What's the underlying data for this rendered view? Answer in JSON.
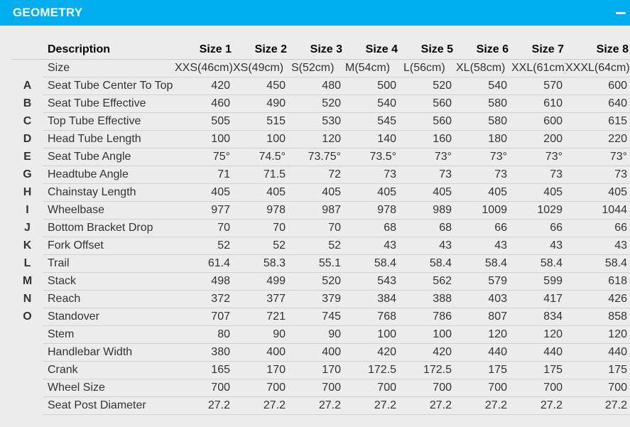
{
  "header": {
    "title": "GEOMETRY"
  },
  "table": {
    "description_header": "Description",
    "size_headers": [
      "Size 1",
      "Size 2",
      "Size 3",
      "Size 4",
      "Size 5",
      "Size 6",
      "Size 7",
      "Size 8"
    ],
    "size_label": "Size",
    "sizes": [
      "XXS(46cm)",
      "XS(49cm)",
      "S(52cm)",
      "M(54cm)",
      "L(56cm)",
      "XL(58cm)",
      "XXL(61cm)",
      "XXXL(64cm)"
    ],
    "rows": [
      {
        "letter": "A",
        "label": "Seat Tube Center To Top",
        "values": [
          "420",
          "450",
          "480",
          "500",
          "520",
          "540",
          "570",
          "600"
        ]
      },
      {
        "letter": "B",
        "label": "Seat Tube Effective",
        "values": [
          "460",
          "490",
          "520",
          "540",
          "560",
          "580",
          "610",
          "640"
        ]
      },
      {
        "letter": "C",
        "label": "Top Tube Effective",
        "values": [
          "505",
          "515",
          "530",
          "545",
          "560",
          "580",
          "600",
          "615"
        ]
      },
      {
        "letter": "D",
        "label": "Head Tube Length",
        "values": [
          "100",
          "100",
          "120",
          "140",
          "160",
          "180",
          "200",
          "220"
        ]
      },
      {
        "letter": "E",
        "label": "Seat Tube Angle",
        "values": [
          "75°",
          "74.5°",
          "73.75°",
          "73.5°",
          "73°",
          "73°",
          "73°",
          "73°"
        ]
      },
      {
        "letter": "G",
        "label": "Headtube Angle",
        "values": [
          "71",
          "71.5",
          "72",
          "73",
          "73",
          "73",
          "73",
          "73"
        ]
      },
      {
        "letter": "H",
        "label": "Chainstay Length",
        "values": [
          "405",
          "405",
          "405",
          "405",
          "405",
          "405",
          "405",
          "405"
        ]
      },
      {
        "letter": "I",
        "label": "Wheelbase",
        "values": [
          "977",
          "978",
          "987",
          "978",
          "989",
          "1009",
          "1029",
          "1044"
        ]
      },
      {
        "letter": "J",
        "label": "Bottom Bracket Drop",
        "values": [
          "70",
          "70",
          "70",
          "68",
          "68",
          "66",
          "66",
          "66"
        ]
      },
      {
        "letter": "K",
        "label": "Fork Offset",
        "values": [
          "52",
          "52",
          "52",
          "43",
          "43",
          "43",
          "43",
          "43"
        ]
      },
      {
        "letter": "L",
        "label": "Trail",
        "values": [
          "61.4",
          "58.3",
          "55.1",
          "58.4",
          "58.4",
          "58.4",
          "58.4",
          "58.4"
        ]
      },
      {
        "letter": "M",
        "label": "Stack",
        "values": [
          "498",
          "499",
          "520",
          "543",
          "562",
          "579",
          "599",
          "618"
        ]
      },
      {
        "letter": "N",
        "label": "Reach",
        "values": [
          "372",
          "377",
          "379",
          "384",
          "388",
          "403",
          "417",
          "426"
        ]
      },
      {
        "letter": "O",
        "label": "Standover",
        "values": [
          "707",
          "721",
          "745",
          "768",
          "786",
          "807",
          "834",
          "858"
        ]
      },
      {
        "letter": "",
        "label": "Stem",
        "values": [
          "80",
          "90",
          "90",
          "100",
          "100",
          "120",
          "120",
          "120"
        ]
      },
      {
        "letter": "",
        "label": "Handlebar Width",
        "values": [
          "380",
          "400",
          "400",
          "420",
          "420",
          "440",
          "440",
          "440"
        ]
      },
      {
        "letter": "",
        "label": "Crank",
        "values": [
          "165",
          "170",
          "170",
          "172.5",
          "172.5",
          "175",
          "175",
          "175"
        ]
      },
      {
        "letter": "",
        "label": "Wheel Size",
        "values": [
          "700",
          "700",
          "700",
          "700",
          "700",
          "700",
          "700",
          "700"
        ]
      },
      {
        "letter": "",
        "label": "Seat Post Diameter",
        "values": [
          "27.2",
          "27.2",
          "27.2",
          "27.2",
          "27.2",
          "27.2",
          "27.2",
          "27.2"
        ]
      }
    ]
  },
  "colors": {
    "header_bg": "#00aeef",
    "page_bg": "#ececec"
  }
}
